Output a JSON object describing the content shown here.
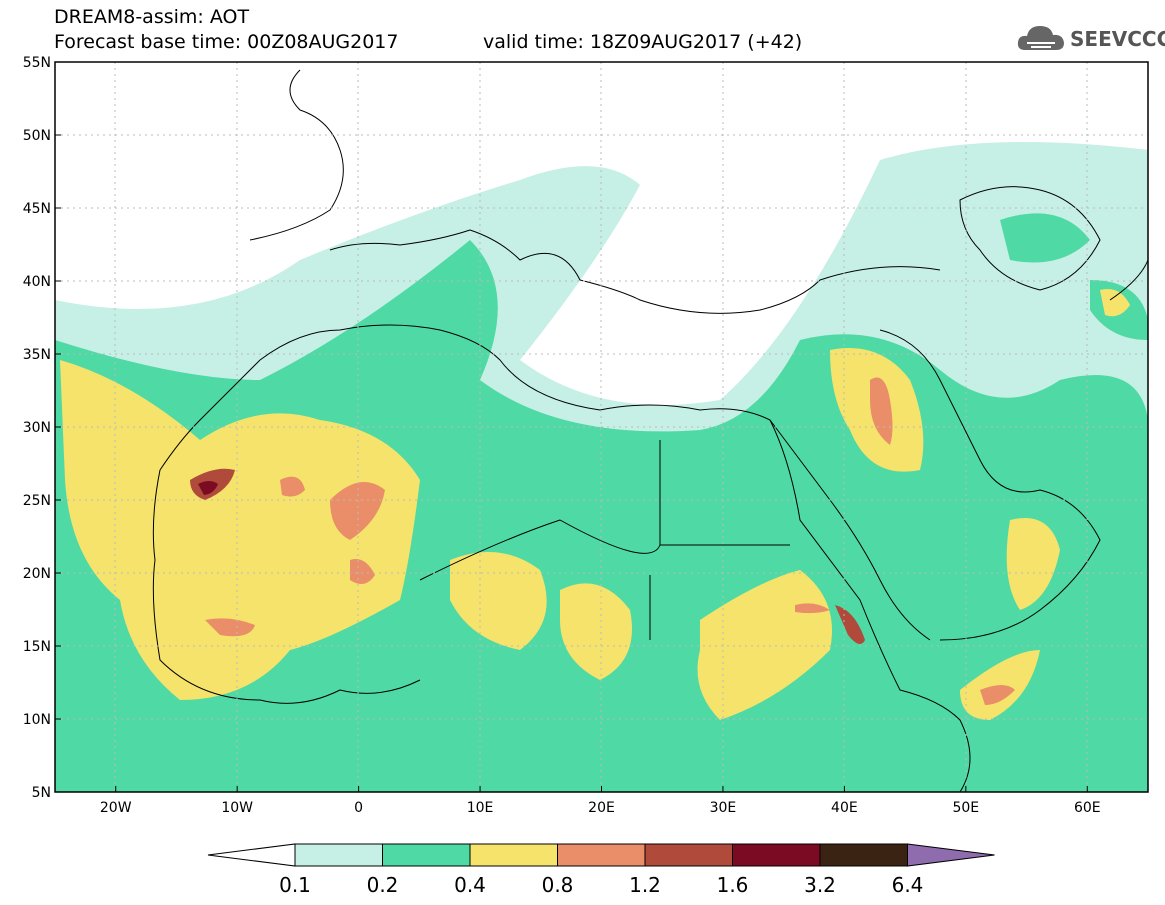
{
  "header": {
    "title": "DREAM8-assim: AOT",
    "base_time": "Forecast base time: 00Z08AUG2017",
    "valid_time": "valid time: 18Z09AUG2017 (+42)"
  },
  "logo": {
    "text": "SEEVCCC",
    "icon": "cloud-icon"
  },
  "map": {
    "lat_labels": [
      "55N",
      "50N",
      "45N",
      "40N",
      "35N",
      "30N",
      "25N",
      "20N",
      "15N",
      "10N",
      "5N"
    ],
    "lon_labels": [
      "20W",
      "10W",
      "0",
      "10E",
      "20E",
      "30E",
      "40E",
      "50E",
      "60E"
    ],
    "extent": {
      "lon_min": -25,
      "lon_max": 65,
      "lat_min": 5,
      "lat_max": 55
    }
  },
  "colorbar": {
    "labels": [
      "0.1",
      "0.2",
      "0.4",
      "0.8",
      "1.2",
      "1.6",
      "3.2",
      "6.4"
    ],
    "colors": [
      "#ffffff",
      "#c6efe6",
      "#4fd9a5",
      "#f5e36c",
      "#e98e68",
      "#b04b3c",
      "#7a0b22",
      "#3b2313",
      "#8e6cae"
    ]
  }
}
